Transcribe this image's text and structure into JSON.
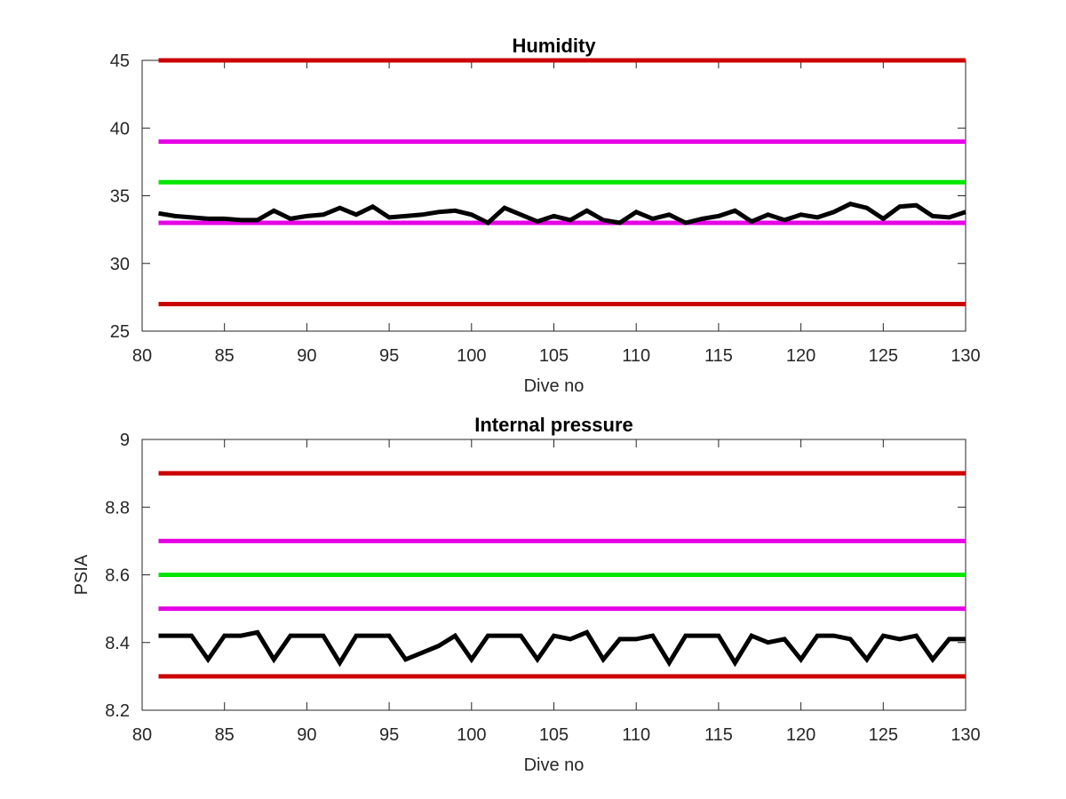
{
  "chart_data": [
    {
      "type": "line",
      "title": "Humidity",
      "xlabel": "Dive no",
      "ylabel": "",
      "xlim": [
        80,
        130
      ],
      "ylim": [
        25,
        45
      ],
      "xticks": [
        80,
        85,
        90,
        95,
        100,
        105,
        110,
        115,
        120,
        125,
        130
      ],
      "yticks": [
        25,
        30,
        35,
        40,
        45
      ],
      "xtick_labels": [
        "80",
        "85",
        "90",
        "95",
        "100",
        "105",
        "110",
        "115",
        "120",
        "125",
        "130"
      ],
      "ytick_labels": [
        "25",
        "30",
        "35",
        "40",
        "45"
      ],
      "grid": false,
      "series": [
        {
          "color": "#cc0000",
          "x": [
            81,
            130
          ],
          "y": [
            45,
            45
          ]
        },
        {
          "color": "#e600e6",
          "x": [
            81,
            130
          ],
          "y": [
            39,
            39
          ]
        },
        {
          "color": "#00e600",
          "x": [
            81,
            130
          ],
          "y": [
            36,
            36
          ]
        },
        {
          "color": "#e600e6",
          "x": [
            81,
            130
          ],
          "y": [
            33,
            33
          ]
        },
        {
          "color": "#cc0000",
          "x": [
            81,
            130
          ],
          "y": [
            27,
            27
          ]
        },
        {
          "color": "#000000",
          "x": [
            81,
            82,
            83,
            84,
            85,
            86,
            87,
            88,
            89,
            90,
            91,
            92,
            93,
            94,
            95,
            96,
            97,
            98,
            99,
            100,
            101,
            102,
            103,
            104,
            105,
            106,
            107,
            108,
            109,
            110,
            111,
            112,
            113,
            114,
            115,
            116,
            117,
            118,
            119,
            120,
            121,
            122,
            123,
            124,
            125,
            126,
            127,
            128,
            129,
            130
          ],
          "y": [
            33.7,
            33.5,
            33.4,
            33.3,
            33.3,
            33.2,
            33.2,
            33.9,
            33.3,
            33.5,
            33.6,
            34.1,
            33.6,
            34.2,
            33.4,
            33.5,
            33.6,
            33.8,
            33.9,
            33.6,
            33.0,
            34.1,
            33.6,
            33.1,
            33.5,
            33.2,
            33.9,
            33.2,
            33.0,
            33.8,
            33.3,
            33.6,
            33.0,
            33.3,
            33.5,
            33.9,
            33.1,
            33.6,
            33.2,
            33.6,
            33.4,
            33.8,
            34.4,
            34.1,
            33.3,
            34.2,
            34.3,
            33.5,
            33.4,
            33.8
          ]
        }
      ]
    },
    {
      "type": "line",
      "title": "Internal pressure",
      "xlabel": "Dive no",
      "ylabel": "PSIA",
      "xlim": [
        80,
        130
      ],
      "ylim": [
        8.2,
        9
      ],
      "xticks": [
        80,
        85,
        90,
        95,
        100,
        105,
        110,
        115,
        120,
        125,
        130
      ],
      "yticks": [
        8.2,
        8.4,
        8.6,
        8.8,
        9
      ],
      "xtick_labels": [
        "80",
        "85",
        "90",
        "95",
        "100",
        "105",
        "110",
        "115",
        "120",
        "125",
        "130"
      ],
      "ytick_labels": [
        "8.2",
        "8.4",
        "8.6",
        "8.8",
        "9"
      ],
      "grid": false,
      "series": [
        {
          "color": "#cc0000",
          "x": [
            81,
            130
          ],
          "y": [
            8.9,
            8.9
          ]
        },
        {
          "color": "#e600e6",
          "x": [
            81,
            130
          ],
          "y": [
            8.7,
            8.7
          ]
        },
        {
          "color": "#00e600",
          "x": [
            81,
            130
          ],
          "y": [
            8.6,
            8.6
          ]
        },
        {
          "color": "#e600e6",
          "x": [
            81,
            130
          ],
          "y": [
            8.5,
            8.5
          ]
        },
        {
          "color": "#cc0000",
          "x": [
            81,
            130
          ],
          "y": [
            8.3,
            8.3
          ]
        },
        {
          "color": "#000000",
          "x": [
            81,
            82,
            83,
            84,
            85,
            86,
            87,
            88,
            89,
            90,
            91,
            92,
            93,
            94,
            95,
            96,
            97,
            98,
            99,
            100,
            101,
            102,
            103,
            104,
            105,
            106,
            107,
            108,
            109,
            110,
            111,
            112,
            113,
            114,
            115,
            116,
            117,
            118,
            119,
            120,
            121,
            122,
            123,
            124,
            125,
            126,
            127,
            128,
            129,
            130
          ],
          "y": [
            8.42,
            8.42,
            8.42,
            8.35,
            8.42,
            8.42,
            8.43,
            8.35,
            8.42,
            8.42,
            8.42,
            8.34,
            8.42,
            8.42,
            8.42,
            8.35,
            8.37,
            8.39,
            8.42,
            8.35,
            8.42,
            8.42,
            8.42,
            8.35,
            8.42,
            8.41,
            8.43,
            8.35,
            8.41,
            8.41,
            8.42,
            8.34,
            8.42,
            8.42,
            8.42,
            8.34,
            8.42,
            8.4,
            8.41,
            8.35,
            8.42,
            8.42,
            8.41,
            8.35,
            8.42,
            8.41,
            8.42,
            8.35,
            8.41,
            8.41
          ]
        }
      ]
    }
  ]
}
